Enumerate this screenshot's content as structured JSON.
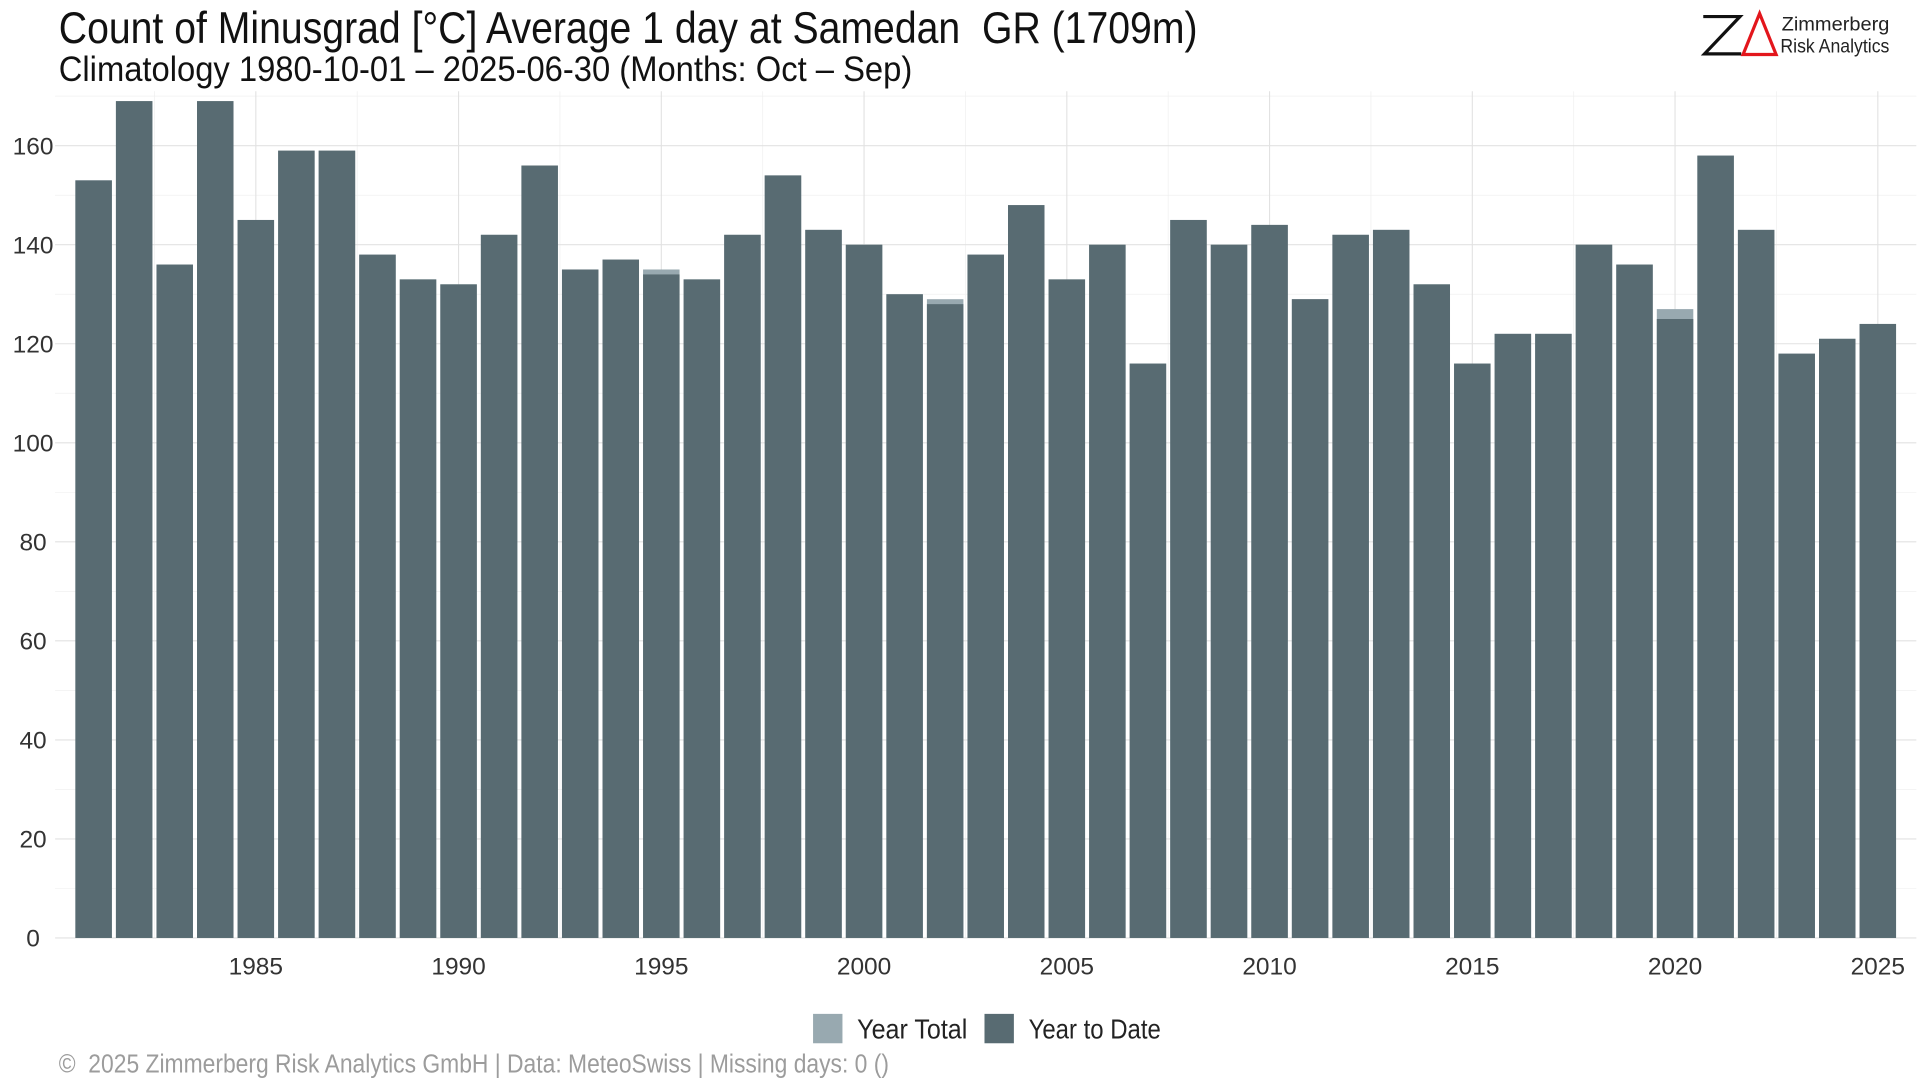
{
  "logo": {
    "line1": "Zimmerberg",
    "line2": "Risk Analytics",
    "mark_color": "#111111",
    "delta_color": "#e3161c"
  },
  "footer": {
    "text": "©  2025 Zimmerberg Risk Analytics GmbH | Data: MeteoSwiss | Missing days: 0 ()"
  },
  "chart_data": {
    "type": "bar",
    "title": "Count of Minusgrad [°C] Average 1 day at Samedan  GR (1709m)",
    "subtitle": "Climatology 1980-10-01 – 2025-06-30 (Months: Oct – Sep)",
    "x": [
      1981,
      1982,
      1983,
      1984,
      1985,
      1986,
      1987,
      1988,
      1989,
      1990,
      1991,
      1992,
      1993,
      1994,
      1995,
      1996,
      1997,
      1998,
      1999,
      2000,
      2001,
      2002,
      2003,
      2004,
      2005,
      2006,
      2007,
      2008,
      2009,
      2010,
      2011,
      2012,
      2013,
      2014,
      2015,
      2016,
      2017,
      2018,
      2019,
      2020,
      2021,
      2022,
      2023,
      2024,
      2025
    ],
    "series": [
      {
        "name": "Year Total",
        "color": "#98a9b0",
        "values": [
          153,
          169,
          136,
          169,
          145,
          159,
          159,
          138,
          133,
          132,
          142,
          156,
          135,
          137,
          135,
          133,
          142,
          154,
          143,
          140,
          130,
          129,
          138,
          148,
          133,
          140,
          116,
          145,
          140,
          144,
          129,
          142,
          143,
          132,
          116,
          122,
          122,
          140,
          136,
          127,
          158,
          143,
          118,
          121,
          124
        ]
      },
      {
        "name": "Year to Date",
        "color": "#586b72",
        "values": [
          153,
          169,
          136,
          169,
          145,
          159,
          159,
          138,
          133,
          132,
          142,
          156,
          135,
          137,
          134,
          133,
          142,
          154,
          143,
          140,
          130,
          128,
          138,
          148,
          133,
          140,
          116,
          145,
          140,
          144,
          129,
          142,
          143,
          132,
          116,
          122,
          122,
          140,
          136,
          125,
          158,
          143,
          118,
          121,
          124
        ]
      }
    ],
    "xticks": [
      1985,
      1990,
      1995,
      2000,
      2005,
      2010,
      2015,
      2020,
      2025
    ],
    "yticks": [
      0,
      20,
      40,
      60,
      80,
      100,
      120,
      140,
      160
    ],
    "xlim": [
      1980.05,
      2025.95
    ],
    "ylim": [
      0,
      171
    ],
    "grid": true,
    "legend": "bottom"
  }
}
